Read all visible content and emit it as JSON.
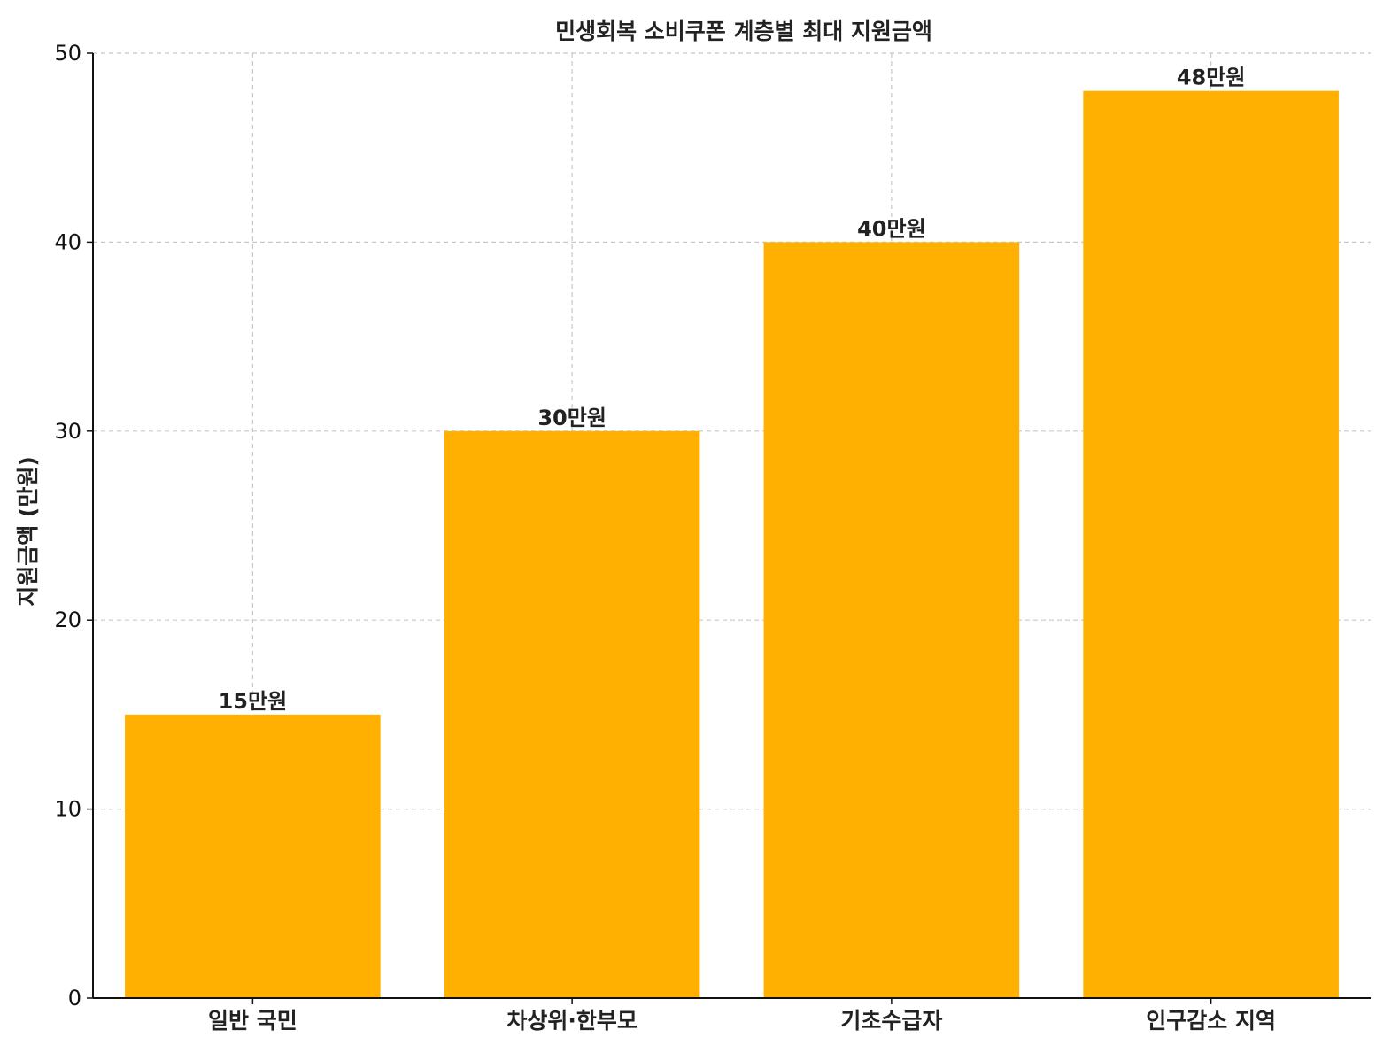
{
  "chart_data": {
    "type": "bar",
    "title": "민생회복 소비쿠폰 계층별 최대 지원금액",
    "xlabel": "",
    "ylabel": "지원금액 (만원)",
    "categories": [
      "일반 국민",
      "차상위·한부모",
      "기초수급자",
      "인구감소 지역"
    ],
    "values": [
      15,
      30,
      40,
      48
    ],
    "data_labels": [
      "15만원",
      "30만원",
      "40만원",
      "48만원"
    ],
    "ylim": [
      0,
      50
    ],
    "yticks": [
      0,
      10,
      20,
      30,
      40,
      50
    ],
    "ytick_labels": [
      "0",
      "10",
      "20",
      "30",
      "40",
      "50"
    ],
    "grid": true,
    "bar_color": "#FFB000"
  }
}
